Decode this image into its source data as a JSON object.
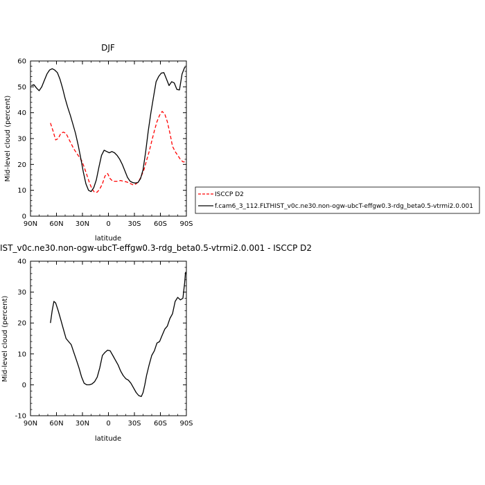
{
  "chart_data": [
    {
      "type": "line",
      "title": "DJF",
      "xlabel": "latitude",
      "ylabel": "Mid-level cloud (percent)",
      "xlim": [
        90,
        -90
      ],
      "ylim": [
        0,
        60
      ],
      "xticks": [
        90,
        60,
        30,
        0,
        -30,
        -60,
        -90
      ],
      "xtick_labels": [
        "90N",
        "60N",
        "30N",
        "0",
        "30S",
        "60S",
        "90S"
      ],
      "yticks": [
        0,
        10,
        20,
        30,
        40,
        50,
        60
      ],
      "grid": false,
      "legend": "bottom-right outside",
      "series": [
        {
          "name": "ISCCP D2",
          "color": "#ff0000",
          "dash": "dashed",
          "x": [
            67,
            64,
            61,
            58,
            55,
            52,
            49,
            46,
            43,
            40,
            37,
            34,
            31,
            28,
            25,
            22,
            19,
            16,
            13,
            10,
            7,
            4,
            1,
            -2,
            -5,
            -8,
            -11,
            -14,
            -17,
            -20,
            -23,
            -26,
            -29,
            -32,
            -35,
            -38,
            -41,
            -44,
            -47,
            -50,
            -53,
            -56,
            -59,
            -62,
            -65,
            -68,
            -71,
            -74,
            -77,
            -80,
            -83,
            -86,
            -89
          ],
          "y": [
            36,
            33,
            29.5,
            30,
            32,
            32.5,
            32,
            30,
            28,
            26,
            24.5,
            23,
            21.5,
            19,
            16,
            13,
            10.5,
            9.2,
            9.3,
            10.5,
            12.5,
            15.5,
            16.5,
            14.5,
            13.5,
            13.5,
            13.5,
            13.8,
            13.5,
            13.3,
            13,
            12.5,
            12,
            12.5,
            13.5,
            15.5,
            18,
            21.5,
            25,
            29,
            33,
            36.5,
            39,
            40.5,
            39.5,
            36.5,
            32,
            27,
            25,
            23.5,
            22,
            21,
            21
          ]
        },
        {
          "name": "f.cam6_3_112.FLTHIST_v0c.ne30.non-ogw-ubcT-effgw0.3-rdg_beta0.5-vtrmi2.0.001",
          "color": "#000000",
          "dash": "solid",
          "x": [
            89,
            86,
            83,
            80,
            77,
            74,
            71,
            68,
            65,
            62,
            59,
            56,
            53,
            50,
            47,
            44,
            41,
            38,
            35,
            32,
            29,
            26,
            23,
            20,
            17,
            14,
            11,
            8,
            5,
            2,
            -1,
            -4,
            -7,
            -10,
            -13,
            -16,
            -19,
            -22,
            -25,
            -28,
            -31,
            -34,
            -37,
            -40,
            -43,
            -46,
            -49,
            -52,
            -55,
            -58,
            -61,
            -64,
            -67,
            -70,
            -73,
            -76,
            -79,
            -82,
            -85,
            -88,
            -89
          ],
          "y": [
            50.5,
            50.8,
            49.5,
            48.5,
            50,
            52.5,
            55,
            56.5,
            57,
            56.5,
            55.5,
            53,
            49.5,
            45.5,
            42,
            39,
            35.5,
            32,
            27.5,
            22.5,
            17,
            12.5,
            10,
            9.5,
            11,
            14,
            19,
            23.5,
            25.5,
            25,
            24.5,
            25,
            24.5,
            23.5,
            22,
            20,
            17.5,
            15,
            13.5,
            13,
            12.8,
            13,
            14.5,
            18,
            25,
            33,
            40,
            46,
            52,
            54,
            55.3,
            55.5,
            53,
            50.5,
            52,
            51.5,
            49,
            48.8,
            55,
            57.5,
            57.5
          ]
        }
      ]
    },
    {
      "type": "line",
      "title": "IST_v0c.ne30.non-ogw-ubcT-effgw0.3-rdg_beta0.5-vtrmi2.0.001 - ISCCP D2",
      "xlabel": "latitude",
      "ylabel": "Mid-level cloud (percent)",
      "xlim": [
        90,
        -90
      ],
      "ylim": [
        -10,
        40
      ],
      "xticks": [
        90,
        60,
        30,
        0,
        -30,
        -60,
        -90
      ],
      "xtick_labels": [
        "90N",
        "60N",
        "30N",
        "0",
        "30S",
        "60S",
        "90S"
      ],
      "yticks": [
        -10,
        0,
        10,
        20,
        30,
        40
      ],
      "grid": false,
      "series": [
        {
          "color": "#000000",
          "dash": "solid",
          "x": [
            67,
            65,
            63,
            61,
            58,
            55,
            52,
            49,
            46,
            43,
            40,
            37,
            34,
            31,
            28,
            25,
            22,
            19,
            16,
            13,
            10,
            7,
            4,
            1,
            -2,
            -5,
            -8,
            -11,
            -14,
            -17,
            -20,
            -23,
            -26,
            -29,
            -32,
            -35,
            -38,
            -40,
            -42,
            -44,
            -47,
            -50,
            -53,
            -56,
            -59,
            -62,
            -65,
            -68,
            -71,
            -74,
            -77,
            -80,
            -83,
            -86,
            -88,
            -89
          ],
          "y": [
            20,
            24,
            27,
            26.5,
            24,
            21,
            18,
            15,
            14,
            13,
            10.5,
            8,
            5.5,
            2.5,
            0.5,
            0,
            0,
            0.3,
            1,
            2.5,
            5.5,
            9.5,
            10.5,
            11.2,
            11,
            9.5,
            8,
            6.5,
            4.5,
            3,
            2,
            1.5,
            0.5,
            -1,
            -2.5,
            -3.5,
            -3.8,
            -2.5,
            0,
            3,
            6.5,
            9.5,
            11,
            13.5,
            14,
            16,
            18,
            19,
            21.5,
            23,
            27,
            28.3,
            27.5,
            28,
            33,
            36.5
          ]
        }
      ]
    }
  ]
}
